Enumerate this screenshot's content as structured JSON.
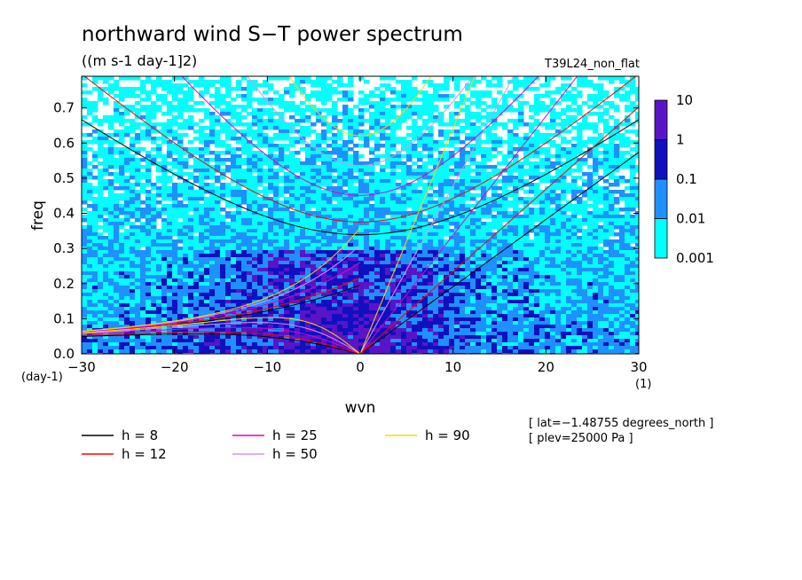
{
  "chart_data": {
    "type": "heatmap",
    "title": "northward wind S−T power spectrum",
    "subtitle": "((m s-1 day-1]2)",
    "run_label": "T39L24_non_flat",
    "xlabel": "wvn",
    "ylabel": "freq",
    "x_unit": "(1)",
    "y_unit": "(day-1)",
    "xlim": [
      -30,
      30
    ],
    "ylim": [
      0,
      0.79
    ],
    "xticks": [
      -30,
      -20,
      -10,
      0,
      10,
      20,
      30
    ],
    "xtick_labels": [
      "−30",
      "−20",
      "−10",
      "0",
      "10",
      "20",
      "30"
    ],
    "yticks": [
      0,
      0.1,
      0.2,
      0.3,
      0.4,
      0.5,
      0.6,
      0.7
    ],
    "ytick_labels": [
      "0.0",
      "0.1",
      "0.2",
      "0.3",
      "0.4",
      "0.5",
      "0.6",
      "0.7"
    ],
    "colorbar": {
      "levels": [
        0.001,
        0.01,
        0.1,
        1,
        10
      ],
      "labels": [
        "0.001",
        "0.01",
        "0.1",
        "1",
        "10"
      ],
      "colors": [
        "#00ffff",
        "#1e90ff",
        "#1010c0",
        "#5a14c8"
      ]
    },
    "dispersion_curves": [
      {
        "label": "h =  8",
        "h": 8,
        "color": "#000000"
      },
      {
        "label": "h = 12",
        "h": 12,
        "color": "#ff0000"
      },
      {
        "label": "h = 25",
        "h": 25,
        "color": "#e000c8"
      },
      {
        "label": "h = 50",
        "h": 50,
        "color": "#e08ee8"
      },
      {
        "label": "h = 90",
        "h": 90,
        "color": "#ffd400"
      }
    ],
    "annotations": [
      "[ lat=−1.48755 degrees_north ]",
      "[ plev=25000 Pa ]"
    ]
  }
}
